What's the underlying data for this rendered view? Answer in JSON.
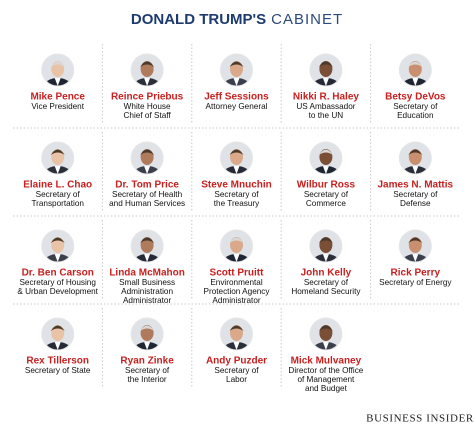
{
  "title": {
    "bold": "DONALD TRUMP'S",
    "light": "CABINET"
  },
  "members": [
    {
      "name": "Mike Pence",
      "role": [
        "Vice President"
      ]
    },
    {
      "name": "Reince Priebus",
      "role": [
        "White House",
        "Chief of Staff"
      ]
    },
    {
      "name": "Jeff Sessions",
      "role": [
        "Attorney General"
      ]
    },
    {
      "name": "Nikki R. Haley",
      "role": [
        "US Ambassador",
        "to the UN"
      ]
    },
    {
      "name": "Betsy DeVos",
      "role": [
        "Secretary of",
        "Education"
      ]
    },
    {
      "name": "Elaine L. Chao",
      "role": [
        "Secretary of",
        "Transportation"
      ]
    },
    {
      "name": "Dr. Tom Price",
      "role": [
        "Secretary of Health",
        "and Human Services"
      ]
    },
    {
      "name": "Steve Mnuchin",
      "role": [
        "Secretary of",
        "the Treasury"
      ]
    },
    {
      "name": "Wilbur Ross",
      "role": [
        "Secretary of",
        "Commerce"
      ]
    },
    {
      "name": "James N. Mattis",
      "role": [
        "Secretary of",
        "Defense"
      ]
    },
    {
      "name": "Dr. Ben Carson",
      "role": [
        "Secretary of Housing",
        "& Urban Development"
      ]
    },
    {
      "name": "Linda McMahon",
      "role": [
        "Small Business",
        "Administration",
        "Administrator"
      ]
    },
    {
      "name": "Scott Pruitt",
      "role": [
        "Environmental",
        "Protection Agency",
        "Administrator"
      ]
    },
    {
      "name": "John Kelly",
      "role": [
        "Secretary of",
        "Homeland Security"
      ]
    },
    {
      "name": "Rick Perry",
      "role": [
        "Secretary of Energy"
      ]
    },
    {
      "name": "Rex Tillerson",
      "role": [
        "Secretary of State"
      ]
    },
    {
      "name": "Ryan Zinke",
      "role": [
        "Secretary of",
        "the Interior"
      ]
    },
    {
      "name": "Andy Puzder",
      "role": [
        "Secretary of",
        "Labor"
      ]
    },
    {
      "name": "Mick Mulvaney",
      "role": [
        "Director of the Office",
        "of Management",
        "and Budget"
      ]
    }
  ],
  "footer": "BUSINESS INSIDER"
}
